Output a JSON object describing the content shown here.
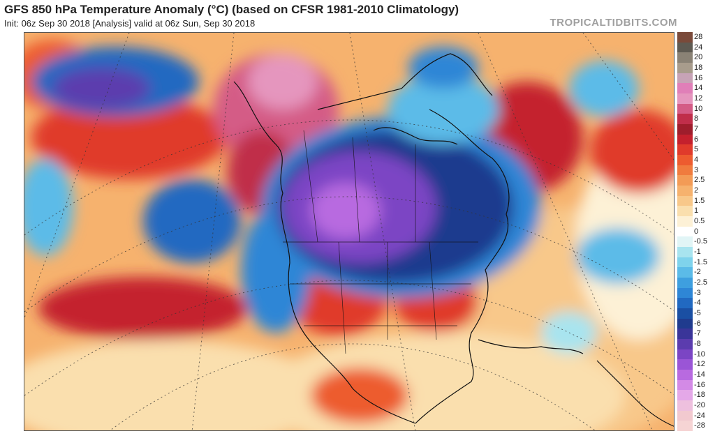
{
  "header": {
    "title": "GFS 850 hPa Temperature Anomaly (°C) (based on CFSR 1981-2010 Climatology)",
    "subtitle": "Init: 06z Sep 30 2018   [Analysis]   valid at 06z Sun, Sep 30 2018",
    "brand": "TROPICALTIDBITS.COM"
  },
  "legend": {
    "items": [
      {
        "label": "28",
        "color": "#7a4a3a"
      },
      {
        "label": "24",
        "color": "#5e5a52"
      },
      {
        "label": "20",
        "color": "#8a8275"
      },
      {
        "label": "18",
        "color": "#a89c8c"
      },
      {
        "label": "16",
        "color": "#c7a3b6"
      },
      {
        "label": "14",
        "color": "#e07fb8"
      },
      {
        "label": "12",
        "color": "#e596be"
      },
      {
        "label": "10",
        "color": "#d45c86"
      },
      {
        "label": "8",
        "color": "#c02e4a"
      },
      {
        "label": "7",
        "color": "#9e1d2c"
      },
      {
        "label": "6",
        "color": "#c4202d"
      },
      {
        "label": "5",
        "color": "#e03a2b"
      },
      {
        "label": "4",
        "color": "#ed5b2f"
      },
      {
        "label": "3",
        "color": "#f07b3e"
      },
      {
        "label": "2.5",
        "color": "#f39b56"
      },
      {
        "label": "2",
        "color": "#f6b26e"
      },
      {
        "label": "1.5",
        "color": "#f8c88a"
      },
      {
        "label": "1",
        "color": "#fadfae"
      },
      {
        "label": "0.5",
        "color": "#fdf1d6"
      },
      {
        "label": "0",
        "color": "#ffffff"
      },
      {
        "label": "-0.5",
        "color": "#e1f5f6"
      },
      {
        "label": "-1",
        "color": "#a8e4ef"
      },
      {
        "label": "-1.5",
        "color": "#7fd3ec"
      },
      {
        "label": "-2",
        "color": "#5bbbe8"
      },
      {
        "label": "-2.5",
        "color": "#3e9fdf"
      },
      {
        "label": "-3",
        "color": "#2e86d6"
      },
      {
        "label": "-4",
        "color": "#2169c1"
      },
      {
        "label": "-5",
        "color": "#1a4fa3"
      },
      {
        "label": "-6",
        "color": "#1f3b8e"
      },
      {
        "label": "-7",
        "color": "#3a3599"
      },
      {
        "label": "-8",
        "color": "#5b3cae"
      },
      {
        "label": "-10",
        "color": "#7b45c4"
      },
      {
        "label": "-12",
        "color": "#9a55d6"
      },
      {
        "label": "-14",
        "color": "#b86ae0"
      },
      {
        "label": "-16",
        "color": "#d38ae6"
      },
      {
        "label": "-18",
        "color": "#e4a8e8"
      },
      {
        "label": "-20",
        "color": "#eec0de"
      },
      {
        "label": "-24",
        "color": "#f2c9cf"
      },
      {
        "label": "-28",
        "color": "#f6d4d4"
      }
    ]
  }
}
